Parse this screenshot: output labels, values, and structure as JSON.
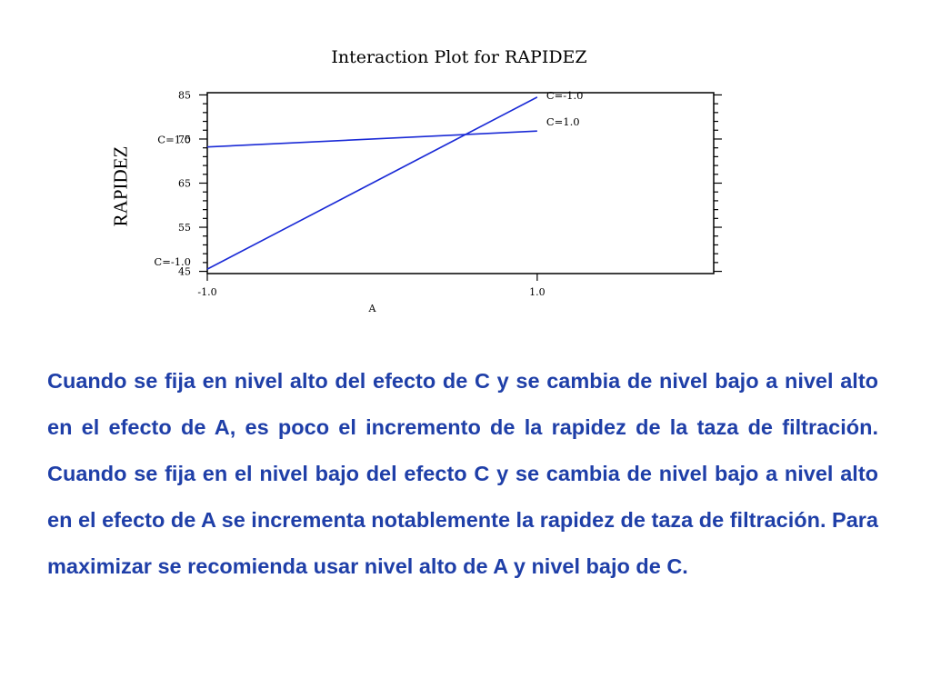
{
  "chart_data": {
    "type": "line",
    "title": "Interaction Plot for RAPIDEZ",
    "xlabel": "A",
    "ylabel": "RAPIDEZ",
    "x_categories": [
      "-1.0",
      "1.0"
    ],
    "xlim": [
      -1.0,
      2.07
    ],
    "ylim": [
      44.5,
      85.5
    ],
    "y_ticks": [
      "45",
      "55",
      "65",
      "75",
      "85"
    ],
    "series": [
      {
        "name": "C=1.0",
        "x": [
          -1.0,
          1.0
        ],
        "y": [
          73.2,
          76.8
        ],
        "start_label": "C=1.0",
        "end_label": "C=1.0",
        "color": "#1a2ad6"
      },
      {
        "name": "C=-1.0",
        "x": [
          -1.0,
          1.0
        ],
        "y": [
          45.5,
          84.5
        ],
        "start_label": "C=-1.0",
        "end_label": "C=-1.0",
        "color": "#1a2ad6"
      }
    ],
    "grid": false,
    "legend": "none"
  },
  "body": {
    "paragraph": "Cuando  se fija en nivel alto del efecto de C y se cambia de nivel bajo a nivel alto en el efecto de A,  es poco el incremento de la rapidez de la taza de filtración. Cuando se fija en el nivel bajo del efecto C y se cambia de nivel bajo a nivel alto en el efecto de A se incrementa notablemente la rapidez de taza de filtración. Para maximizar se recomienda usar nivel alto de A y nivel bajo de C.",
    "text_color": "#1f3fa8"
  }
}
